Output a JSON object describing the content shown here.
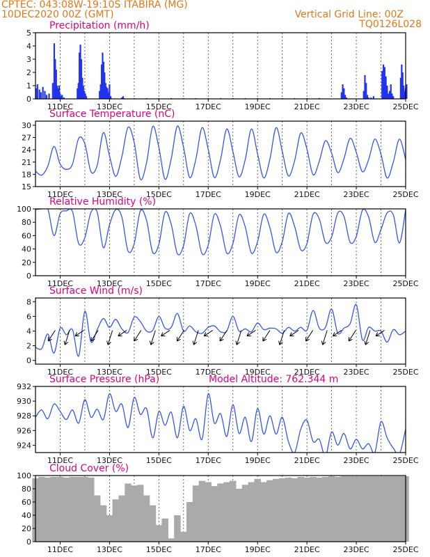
{
  "header": {
    "left_line1": "CPTEC:   043:08W-19:10S   ITABIRA (MG)",
    "left_line2": "10DEC2020 00Z (GMT)",
    "right_line1": "Vertical Grid Line: 00Z",
    "right_line2": "TQ0126L028"
  },
  "colors": {
    "line": "#3355ee",
    "bars": "#2233ee",
    "cloud": "#aaaaaa",
    "header": "#e07818",
    "title": "#e0007a"
  },
  "chart_data": [
    {
      "id": "precipitation",
      "type": "bar",
      "title": "Precipitation (mm/h)",
      "x_unit": "days from 10DEC2020 00Z",
      "xlim": [
        0.0,
        15.0
      ],
      "ylim": [
        0,
        5
      ],
      "yticks": [
        0,
        1,
        2,
        3,
        4,
        5
      ],
      "x_tick_labels": [
        "11DEC",
        "13DEC",
        "15DEC",
        "17DEC",
        "19DEC",
        "21DEC",
        "23DEC",
        "25DEC"
      ],
      "series": [
        {
          "x": [
            0.02,
            0.08,
            0.16,
            0.22,
            0.3,
            0.38,
            0.45,
            0.55,
            0.7,
            0.76,
            0.8,
            0.84,
            0.88,
            0.92,
            0.96,
            1.0,
            1.04,
            1.08,
            1.15,
            1.7,
            1.74,
            1.78,
            1.82,
            1.86,
            1.9,
            1.94,
            1.98,
            2.02,
            2.06,
            2.6,
            2.64,
            2.68,
            2.72,
            2.76,
            2.8,
            2.84,
            2.88,
            2.92,
            2.96,
            3.0,
            3.05,
            3.5,
            3.55,
            3.6,
            4.0,
            4.5,
            5.0,
            5.5,
            6.0,
            6.5,
            7.0,
            7.5,
            8.0,
            8.5,
            9.0,
            9.5,
            10.0,
            10.5,
            11.0,
            11.5,
            12.4,
            12.45,
            12.5,
            12.55,
            12.6,
            13.3,
            13.35,
            13.4,
            13.45,
            13.5,
            13.6,
            13.7,
            14.05,
            14.1,
            14.15,
            14.2,
            14.25,
            14.3,
            14.35,
            14.4,
            14.45,
            14.5,
            14.8,
            14.84,
            14.88,
            14.92,
            14.96,
            15.0,
            15.04
          ],
          "values": [
            0.8,
            1.1,
            0.7,
            0.5,
            0.9,
            0.6,
            0.3,
            0.4,
            1.2,
            4.2,
            3.0,
            2.2,
            1.0,
            0.8,
            1.0,
            0.4,
            0.2,
            0.3,
            0.1,
            0.8,
            1.2,
            3.5,
            4.1,
            3.0,
            1.6,
            1.0,
            0.6,
            0.4,
            0.2,
            0.6,
            1.1,
            2.6,
            3.5,
            2.8,
            2.0,
            1.2,
            0.9,
            0.8,
            0.5,
            1.1,
            0.2,
            0.1,
            0.2,
            0.05,
            0.05,
            0.05,
            0.05,
            0.05,
            0.05,
            0.05,
            0.05,
            0.05,
            0.05,
            0.05,
            0.05,
            0.05,
            0.05,
            0.05,
            0.05,
            0.05,
            0.5,
            1.1,
            0.8,
            0.3,
            0.1,
            0.6,
            1.8,
            1.2,
            0.3,
            0.1,
            0.1,
            0.2,
            2.1,
            2.6,
            2.4,
            1.7,
            1.0,
            0.4,
            0.6,
            1.1,
            0.4,
            0.2,
            1.6,
            2.6,
            2.0,
            1.0,
            0.6,
            0.8,
            1.1
          ]
        }
      ]
    },
    {
      "id": "temperature",
      "type": "line",
      "title": "Surface Temperature (nC)",
      "x_unit": "days from 10DEC2020 00Z",
      "xlim": [
        0.0,
        15.0
      ],
      "ylim": [
        15,
        31
      ],
      "yticks": [
        15,
        18,
        21,
        24,
        27,
        30
      ],
      "x_tick_labels": [
        "11DEC",
        "13DEC",
        "15DEC",
        "17DEC",
        "19DEC",
        "21DEC",
        "23DEC",
        "25DEC"
      ],
      "series": [
        {
          "x": [
            0.0,
            0.25,
            0.5,
            0.75,
            1.0,
            1.25,
            1.5,
            1.75,
            2.0,
            2.25,
            2.5,
            2.75,
            3.0,
            3.25,
            3.5,
            3.75,
            4.0,
            4.25,
            4.5,
            4.75,
            5.0,
            5.25,
            5.5,
            5.75,
            6.0,
            6.25,
            6.5,
            6.75,
            7.0,
            7.25,
            7.5,
            7.75,
            8.0,
            8.25,
            8.5,
            8.75,
            9.0,
            9.25,
            9.5,
            9.75,
            10.0,
            10.25,
            10.5,
            10.75,
            11.0,
            11.25,
            11.5,
            11.75,
            12.0,
            12.25,
            12.5,
            12.75,
            13.0,
            13.25,
            13.5,
            13.75,
            14.0,
            14.25,
            14.5,
            14.75,
            15.0
          ],
          "values": [
            18.8,
            17.8,
            20.0,
            24.8,
            20.5,
            19.2,
            20.5,
            26.8,
            25.5,
            18.6,
            20.2,
            28.2,
            22.5,
            17.5,
            22.3,
            29.5,
            25.8,
            16.8,
            20.8,
            29.7,
            24.6,
            16.8,
            21.8,
            29.8,
            24.6,
            17.2,
            21.7,
            29.4,
            24.1,
            17.2,
            21.6,
            29.1,
            23.6,
            17.4,
            21.6,
            29.1,
            23.0,
            17.1,
            21.7,
            29.4,
            23.6,
            17.6,
            21.3,
            28.1,
            24.2,
            17.9,
            21.2,
            26.2,
            23.2,
            18.4,
            21.8,
            26.8,
            23.4,
            18.6,
            21.6,
            26.6,
            22.9,
            17.1,
            21.0,
            26.6,
            21.6
          ]
        }
      ]
    },
    {
      "id": "humidity",
      "type": "line",
      "title": "Relative Humidity (%)",
      "x_unit": "days from 10DEC2020 00Z",
      "xlim": [
        0.0,
        15.0
      ],
      "ylim": [
        0,
        100
      ],
      "yticks": [
        0,
        20,
        40,
        60,
        80,
        100
      ],
      "x_tick_labels": [
        "11DEC",
        "13DEC",
        "15DEC",
        "17DEC",
        "19DEC",
        "21DEC",
        "23DEC",
        "25DEC"
      ],
      "series": [
        {
          "x": [
            0.0,
            0.25,
            0.5,
            0.75,
            1.0,
            1.25,
            1.5,
            1.75,
            2.0,
            2.25,
            2.5,
            2.75,
            3.0,
            3.25,
            3.5,
            3.75,
            4.0,
            4.25,
            4.5,
            4.75,
            5.0,
            5.25,
            5.5,
            5.75,
            6.0,
            6.25,
            6.5,
            6.75,
            7.0,
            7.25,
            7.5,
            7.75,
            8.0,
            8.25,
            8.5,
            8.75,
            9.0,
            9.25,
            9.5,
            9.75,
            10.0,
            10.25,
            10.5,
            10.75,
            11.0,
            11.25,
            11.5,
            11.75,
            12.0,
            12.25,
            12.5,
            12.75,
            13.0,
            13.25,
            13.5,
            13.75,
            14.0,
            14.25,
            14.5,
            14.75,
            15.0
          ],
          "values": [
            99,
            100,
            100,
            60,
            93,
            97,
            96,
            48,
            57,
            95,
            95,
            42,
            76,
            99,
            88,
            37,
            48,
            97,
            83,
            35,
            47,
            95,
            77,
            33,
            45,
            93,
            75,
            33,
            46,
            92,
            74,
            34,
            48,
            91,
            73,
            34,
            51,
            92,
            72,
            35,
            51,
            93,
            74,
            39,
            48,
            92,
            85,
            50,
            58,
            94,
            89,
            50,
            59,
            98,
            88,
            50,
            69,
            94,
            91,
            49,
            99
          ]
        }
      ]
    },
    {
      "id": "wind",
      "type": "line",
      "title": "Surface Wind (m/s)",
      "x_unit": "days from 10DEC2020 00Z",
      "xlim": [
        0.0,
        15.0
      ],
      "ylim": [
        -0.5,
        8.5
      ],
      "yticks": [
        0,
        2,
        4,
        6,
        8
      ],
      "x_tick_labels": [
        "11DEC",
        "13DEC",
        "15DEC",
        "17DEC",
        "19DEC",
        "21DEC",
        "23DEC",
        "25DEC"
      ],
      "series": [
        {
          "x": [
            0.0,
            0.25,
            0.5,
            0.75,
            1.0,
            1.25,
            1.5,
            1.75,
            2.0,
            2.25,
            2.5,
            2.75,
            3.0,
            3.25,
            3.5,
            3.75,
            4.0,
            4.25,
            4.5,
            4.75,
            5.0,
            5.25,
            5.5,
            5.75,
            6.0,
            6.25,
            6.5,
            6.75,
            7.0,
            7.25,
            7.5,
            7.75,
            8.0,
            8.25,
            8.5,
            8.75,
            9.0,
            9.25,
            9.5,
            9.75,
            10.0,
            10.25,
            10.5,
            10.75,
            11.0,
            11.25,
            11.5,
            11.75,
            12.0,
            12.25,
            12.5,
            12.75,
            13.0,
            13.25,
            13.5,
            13.75,
            14.0,
            14.25,
            14.5,
            14.75,
            15.0
          ],
          "values": [
            1.8,
            1.6,
            3.6,
            1.0,
            4.4,
            3.5,
            4.2,
            0.6,
            6.7,
            2.5,
            4.2,
            5.7,
            4.5,
            5.6,
            4.3,
            3.8,
            5.9,
            5.3,
            4.0,
            4.1,
            6.0,
            4.4,
            4.5,
            6.4,
            4.0,
            4.7,
            3.9,
            3.7,
            4.5,
            4.7,
            3.9,
            4.0,
            6.0,
            4.0,
            4.3,
            3.9,
            5.1,
            4.2,
            4.4,
            4.3,
            3.7,
            4.5,
            4.0,
            4.5,
            4.1,
            6.8,
            4.4,
            4.5,
            7.0,
            3.7,
            4.4,
            5.0,
            7.6,
            2.8,
            4.5,
            4.0,
            4.0,
            2.5,
            4.2,
            3.5,
            4.0
          ]
        }
      ]
    },
    {
      "id": "pressure",
      "type": "line",
      "title": "Surface Pressure (hPa)",
      "annotation": "Model Altitude: 762.344 m",
      "x_unit": "days from 10DEC2020 00Z",
      "xlim": [
        0.0,
        15.0
      ],
      "ylim": [
        923,
        932
      ],
      "yticks": [
        924,
        926,
        928,
        930,
        932
      ],
      "x_tick_labels": [
        "11DEC",
        "13DEC",
        "15DEC",
        "17DEC",
        "19DEC",
        "21DEC",
        "23DEC",
        "25DEC"
      ],
      "series": [
        {
          "x": [
            0.0,
            0.25,
            0.5,
            0.75,
            1.0,
            1.25,
            1.5,
            1.75,
            2.0,
            2.25,
            2.5,
            2.75,
            3.0,
            3.25,
            3.5,
            3.75,
            4.0,
            4.25,
            4.5,
            4.75,
            5.0,
            5.25,
            5.5,
            5.75,
            6.0,
            6.25,
            6.5,
            6.75,
            7.0,
            7.25,
            7.5,
            7.75,
            8.0,
            8.25,
            8.5,
            8.75,
            9.0,
            9.25,
            9.5,
            9.75,
            10.0,
            10.25,
            10.5,
            10.75,
            11.0,
            11.25,
            11.5,
            11.75,
            12.0,
            12.25,
            12.5,
            12.75,
            13.0,
            13.25,
            13.5,
            13.75,
            14.0,
            14.25,
            14.5,
            14.75,
            15.0
          ],
          "values": [
            927.8,
            928.8,
            927.6,
            929.6,
            928.6,
            927.5,
            928.8,
            927.0,
            930.2,
            927.8,
            928.9,
            927.5,
            931.0,
            928.6,
            929.6,
            926.4,
            930.5,
            928.2,
            929.0,
            925.0,
            928.6,
            926.7,
            928.5,
            925.0,
            929.3,
            926.0,
            927.6,
            924.8,
            931.0,
            927.0,
            928.3,
            925.2,
            929.5,
            925.6,
            927.8,
            924.5,
            929.0,
            925.5,
            928.0,
            925.5,
            927.8,
            924.5,
            923.0,
            926.2,
            927.4,
            924.5,
            924.8,
            922.5,
            925.8,
            924.0,
            925.6,
            923.5,
            924.8,
            923.5,
            924.2,
            923.0,
            927.2,
            925.0,
            923.6,
            922.8,
            926.2
          ]
        }
      ]
    },
    {
      "id": "cloud_cover",
      "type": "area",
      "title": "Cloud Cover (%)",
      "x_unit": "days from 10DEC2020 00Z",
      "xlim": [
        0.0,
        15.0
      ],
      "ylim": [
        0,
        100
      ],
      "yticks": [
        0,
        20,
        40,
        60,
        80,
        100
      ],
      "x_tick_labels": [
        "11DEC",
        "13DEC",
        "15DEC",
        "17DEC",
        "19DEC",
        "21DEC",
        "23DEC",
        "25DEC"
      ],
      "series": [
        {
          "x": [
            0.0,
            0.25,
            0.5,
            0.75,
            1.0,
            1.25,
            1.5,
            1.75,
            2.0,
            2.25,
            2.5,
            2.75,
            3.0,
            3.25,
            3.5,
            3.75,
            4.0,
            4.25,
            4.5,
            4.75,
            5.0,
            5.25,
            5.5,
            5.75,
            6.0,
            6.25,
            6.5,
            6.75,
            7.0,
            7.25,
            7.5,
            7.75,
            8.0,
            8.25,
            8.5,
            8.75,
            9.0,
            9.25,
            9.5,
            9.75,
            10.0,
            10.25,
            10.5,
            10.75,
            11.0,
            11.25,
            11.5,
            11.75,
            12.0,
            12.25,
            12.5,
            12.75,
            13.0,
            13.25,
            13.5,
            13.75,
            14.0,
            14.25,
            14.5,
            14.75,
            15.0
          ],
          "values": [
            96,
            98,
            97,
            98,
            98,
            97,
            98,
            98,
            98,
            97,
            70,
            55,
            40,
            64,
            70,
            88,
            85,
            86,
            70,
            55,
            25,
            35,
            5,
            40,
            15,
            60,
            85,
            92,
            90,
            84,
            88,
            90,
            92,
            80,
            86,
            90,
            95,
            90,
            93,
            95,
            96,
            97,
            96,
            98,
            97,
            98,
            97,
            98,
            99,
            98,
            99,
            99,
            99,
            99,
            99,
            99,
            99,
            99,
            99,
            99,
            99
          ]
        }
      ]
    }
  ]
}
